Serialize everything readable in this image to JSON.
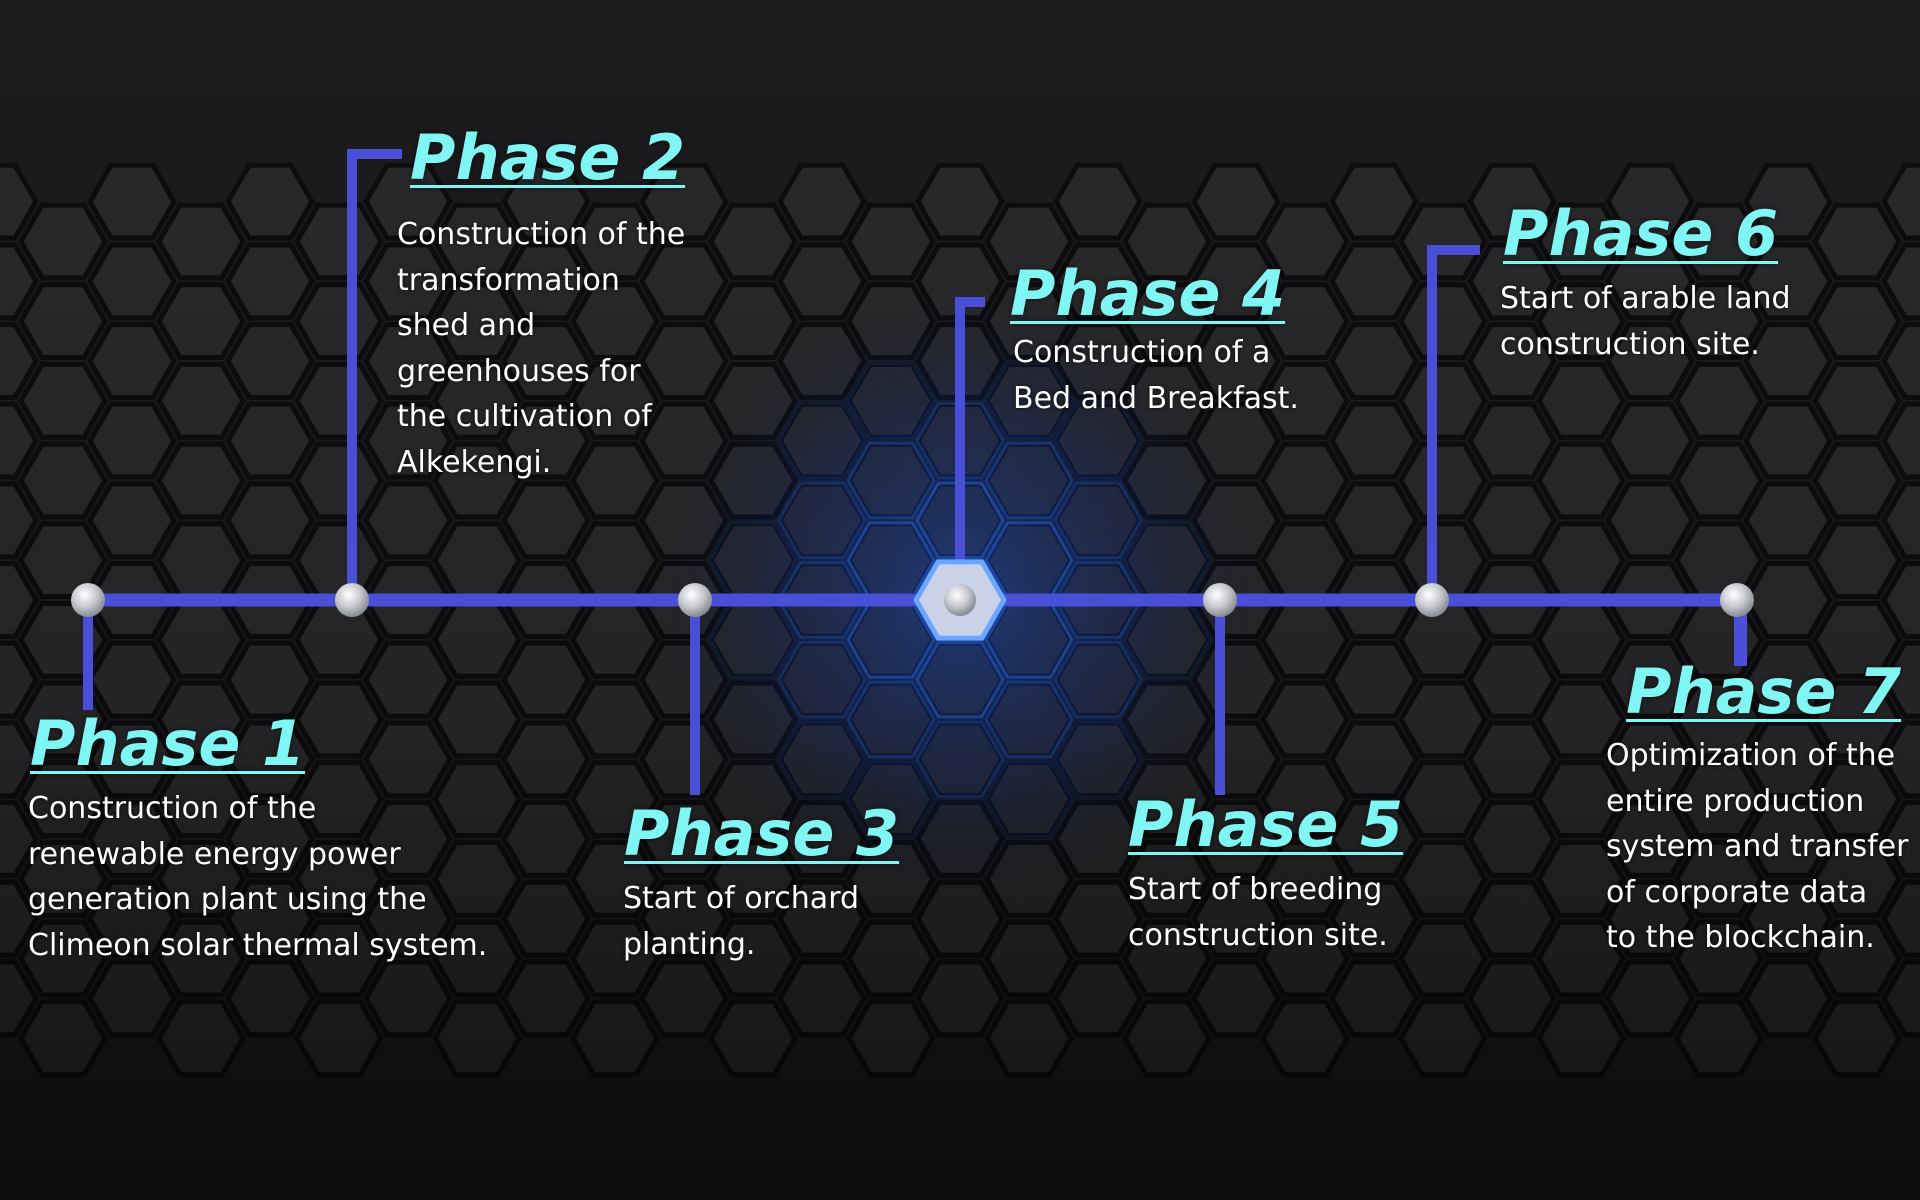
{
  "diagram": {
    "colors": {
      "background": "#1c1c1e",
      "hex_fill": "#2a2a2c",
      "hex_glow": "#2e7dff",
      "connector": "#4a4fd8",
      "node": "#c8cacf",
      "title": "#7ff6f3",
      "text": "#ffffff"
    },
    "nodes": [
      {
        "shape": "circle"
      },
      {
        "shape": "circle"
      },
      {
        "shape": "circle"
      },
      {
        "shape": "hexagon"
      },
      {
        "shape": "circle"
      },
      {
        "shape": "circle"
      },
      {
        "shape": "circle"
      }
    ],
    "phases": [
      {
        "title": "Phase 1",
        "lines": [
          "Construction of the",
          "renewable energy power",
          "generation plant using the",
          "Climeon solar thermal system."
        ]
      },
      {
        "title": "Phase 2",
        "lines": [
          "Construction of the",
          "transformation",
          "shed and",
          "greenhouses for",
          "the cultivation of",
          "Alkekengi."
        ]
      },
      {
        "title": "Phase 3",
        "lines": [
          "Start of orchard",
          "planting."
        ]
      },
      {
        "title": "Phase 4",
        "lines": [
          "Construction of a",
          "Bed and Breakfast."
        ]
      },
      {
        "title": "Phase 5",
        "lines": [
          "Start of breeding",
          "construction site."
        ]
      },
      {
        "title": "Phase 6",
        "lines": [
          "Start of arable land",
          "construction site."
        ]
      },
      {
        "title": "Phase 7",
        "lines": [
          "Optimization of the",
          "entire production",
          "system and transfer",
          "of corporate data",
          "to the blockchain."
        ]
      }
    ]
  }
}
